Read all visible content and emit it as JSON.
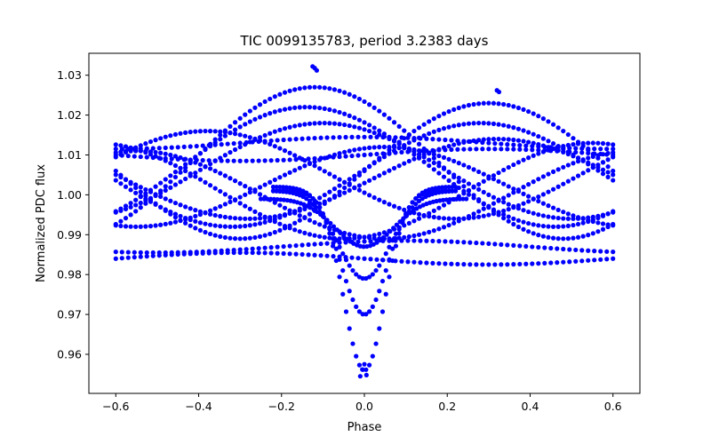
{
  "chart_data": {
    "type": "scatter",
    "title": "TIC 0099135783, period 3.2383 days",
    "xlabel": "Phase",
    "ylabel": "Normalized PDC flux",
    "xlim": [
      -0.665,
      0.665
    ],
    "ylim": [
      0.9502,
      1.0355
    ],
    "x_ticks": [
      -0.6,
      -0.4,
      -0.2,
      0.0,
      0.2,
      0.4,
      0.6
    ],
    "x_tick_labels": [
      "−0.6",
      "−0.4",
      "−0.2",
      "0.0",
      "0.2",
      "0.4",
      "0.6"
    ],
    "y_ticks": [
      0.96,
      0.97,
      0.98,
      0.99,
      1.0,
      1.01,
      1.02,
      1.03
    ],
    "y_tick_labels": [
      "0.96",
      "0.97",
      "0.98",
      "0.99",
      "1.00",
      "1.01",
      "1.02",
      "1.03"
    ],
    "marker_color": "#0000ff",
    "grid": false,
    "series": [
      {
        "name": "sinusoid peak -0.12",
        "pattern": "sine",
        "amp": 0.019,
        "base": 1.008,
        "peak_phase": -0.12,
        "step": 0.012
      },
      {
        "name": "sinusoid peak -0.14",
        "pattern": "sine",
        "amp": 0.015,
        "base": 1.007,
        "peak_phase": -0.14,
        "step": 0.012
      },
      {
        "name": "sinusoid peak -0.10",
        "pattern": "sine",
        "amp": 0.012,
        "base": 1.006,
        "peak_phase": -0.1,
        "step": 0.012
      },
      {
        "name": "sinusoid peak 0.30",
        "pattern": "sine",
        "amp": 0.017,
        "base": 1.006,
        "peak_phase": 0.3,
        "step": 0.012
      },
      {
        "name": "sinusoid peak 0.28",
        "pattern": "sine",
        "amp": 0.013,
        "base": 1.005,
        "peak_phase": 0.28,
        "step": 0.012
      },
      {
        "name": "sinusoid peak 0.32",
        "pattern": "sine",
        "amp": 0.01,
        "base": 1.004,
        "peak_phase": 0.32,
        "step": 0.012
      },
      {
        "name": "sinusoid peak -0.38",
        "pattern": "sine",
        "amp": 0.011,
        "base": 1.005,
        "peak_phase": -0.38,
        "step": 0.012
      },
      {
        "name": "sinusoid peak 0.05",
        "pattern": "sine",
        "amp": 0.01,
        "base": 1.002,
        "peak_phase": 0.05,
        "step": 0.012
      },
      {
        "name": "sinusoid peak 0.55",
        "pattern": "sine",
        "amp": 0.012,
        "base": 1.001,
        "peak_phase": 0.55,
        "step": 0.012
      },
      {
        "name": "sinusoid peak -0.55",
        "pattern": "sine",
        "amp": 0.011,
        "base": 1.0,
        "peak_phase": -0.55,
        "step": 0.012
      },
      {
        "name": "dip depth 0.045",
        "pattern": "dip",
        "amp": 0.045,
        "base": 1.001,
        "peak_phase": 0.0,
        "width": 0.07,
        "range": [
          -0.22,
          0.22
        ],
        "step": 0.008
      },
      {
        "name": "dip depth 0.032",
        "pattern": "dip",
        "amp": 0.032,
        "base": 1.002,
        "peak_phase": 0.0,
        "width": 0.08,
        "range": [
          -0.22,
          0.22
        ],
        "step": 0.008
      },
      {
        "name": "dip depth 0.022",
        "pattern": "dip",
        "amp": 0.022,
        "base": 1.001,
        "peak_phase": 0.0,
        "width": 0.09,
        "range": [
          -0.22,
          0.22
        ],
        "step": 0.008
      },
      {
        "name": "dip depth 0.012",
        "pattern": "dip",
        "amp": 0.012,
        "base": 0.999,
        "peak_phase": 0.0,
        "width": 0.1,
        "range": [
          -0.25,
          0.25
        ],
        "step": 0.008
      },
      {
        "name": "flat band 1.013",
        "pattern": "sine",
        "amp": 0.0015,
        "base": 1.013,
        "peak_phase": 0.0,
        "step": 0.015
      },
      {
        "name": "flat band 1.010",
        "pattern": "sine",
        "amp": 0.0015,
        "base": 1.01,
        "peak_phase": 0.3,
        "step": 0.015
      },
      {
        "name": "flat band 0.987",
        "pattern": "sine",
        "amp": 0.0015,
        "base": 0.987,
        "peak_phase": 0.1,
        "step": 0.015
      },
      {
        "name": "flat band 0.984",
        "pattern": "sine",
        "amp": 0.0015,
        "base": 0.984,
        "peak_phase": -0.3,
        "step": 0.015
      },
      {
        "name": "outlier cluster",
        "pattern": "points",
        "x": [
          -0.01,
          -0.005,
          0.0,
          0.005,
          0.32,
          0.325,
          -0.125,
          -0.12,
          -0.115
        ],
        "y": [
          0.9545,
          0.9562,
          0.9575,
          0.9548,
          1.0262,
          1.0258,
          1.0322,
          1.0318,
          1.0312
        ]
      }
    ]
  }
}
